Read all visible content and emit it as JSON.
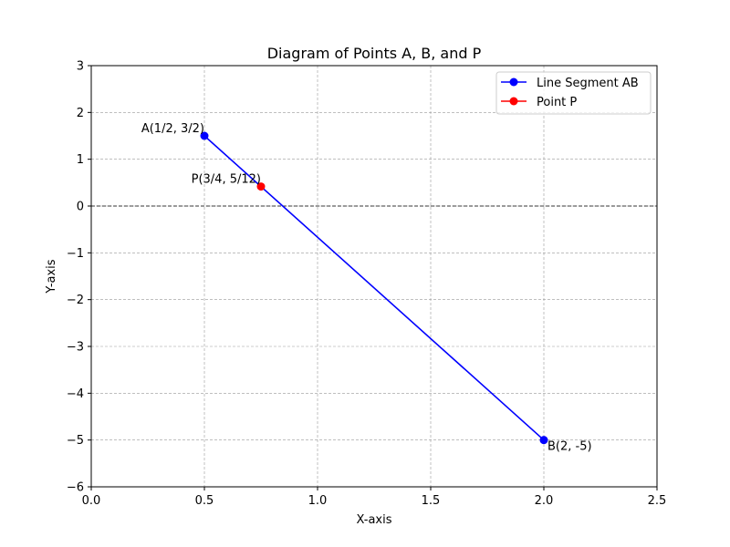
{
  "chart_data": {
    "type": "line",
    "title": "Diagram of Points A, B, and P",
    "xlabel": "X-axis",
    "ylabel": "Y-axis",
    "xlim": [
      0.0,
      2.5
    ],
    "ylim": [
      -6,
      3
    ],
    "x_ticks": [
      {
        "value": 0.0,
        "label": "0.0"
      },
      {
        "value": 0.5,
        "label": "0.5"
      },
      {
        "value": 1.0,
        "label": "1.0"
      },
      {
        "value": 1.5,
        "label": "1.5"
      },
      {
        "value": 2.0,
        "label": "2.0"
      },
      {
        "value": 2.5,
        "label": "2.5"
      }
    ],
    "y_ticks": [
      {
        "value": 3,
        "label": "3"
      },
      {
        "value": 2,
        "label": "2"
      },
      {
        "value": 1,
        "label": "1"
      },
      {
        "value": 0,
        "label": "0"
      },
      {
        "value": -1,
        "label": "−1"
      },
      {
        "value": -2,
        "label": "−2"
      },
      {
        "value": -3,
        "label": "−3"
      },
      {
        "value": -4,
        "label": "−4"
      },
      {
        "value": -5,
        "label": "−5"
      },
      {
        "value": -6,
        "label": "−6"
      }
    ],
    "grid": true,
    "zero_line": true,
    "legend_position": "top-right",
    "series": [
      {
        "name": "Line Segment AB",
        "color": "#0000ff",
        "x": [
          0.5,
          2.0
        ],
        "y": [
          1.5,
          -5.0
        ]
      },
      {
        "name": "Point P",
        "color": "#ff0000",
        "x": [
          0.75
        ],
        "y": [
          0.4167
        ]
      }
    ],
    "annotations": [
      {
        "text": "A(1/2, 3/2)",
        "x": 0.5,
        "y": 1.5,
        "anchor": "end"
      },
      {
        "text": "P(3/4, 5/12)",
        "x": 0.75,
        "y": 0.4167,
        "anchor": "end"
      },
      {
        "text": "B(2, -5)",
        "x": 2.0,
        "y": -5.0,
        "anchor": "start"
      }
    ]
  }
}
